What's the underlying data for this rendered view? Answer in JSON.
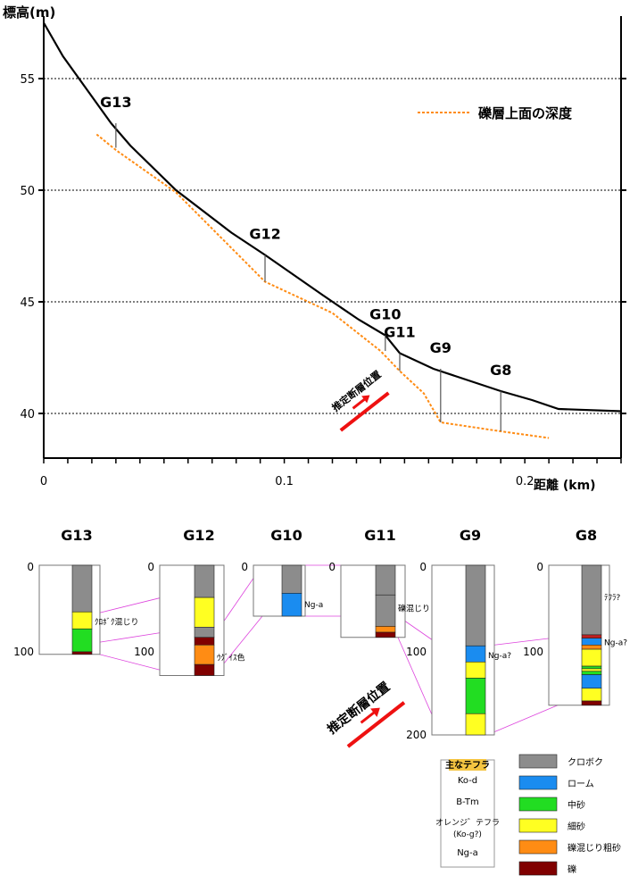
{
  "profile": {
    "ylabel": "標高(m)",
    "xlabel": "距離 (km)",
    "y_ticks": [
      {
        "value": 40,
        "label": "40"
      },
      {
        "value": 45,
        "label": "45"
      },
      {
        "value": 50,
        "label": "50"
      },
      {
        "value": 55,
        "label": "55"
      }
    ],
    "x_ticks": [
      {
        "value": 0,
        "label": "0"
      },
      {
        "value": 0.1,
        "label": "0.1"
      },
      {
        "value": 0.2,
        "label": "0.2"
      }
    ],
    "xlim": [
      0,
      0.24
    ],
    "ylim": [
      38,
      57.8
    ],
    "legend_label": "礫層上面の深度",
    "fault_label": "推定断層位置",
    "ground_surface": [
      [
        0,
        57.5
      ],
      [
        0.008,
        56
      ],
      [
        0.018,
        54.5
      ],
      [
        0.028,
        53
      ],
      [
        0.036,
        52
      ],
      [
        0.055,
        50
      ],
      [
        0.078,
        48.1
      ],
      [
        0.092,
        47.1
      ],
      [
        0.116,
        45.3
      ],
      [
        0.131,
        44.2
      ],
      [
        0.142,
        43.5
      ],
      [
        0.148,
        42.7
      ],
      [
        0.162,
        42.0
      ],
      [
        0.176,
        41.5
      ],
      [
        0.19,
        41.0
      ],
      [
        0.203,
        40.6
      ],
      [
        0.214,
        40.2
      ],
      [
        0.24,
        40.1
      ]
    ],
    "gravel_top": [
      [
        0.022,
        52.5
      ],
      [
        0.03,
        51.8
      ],
      [
        0.055,
        49.9
      ],
      [
        0.092,
        45.9
      ],
      [
        0.12,
        44.5
      ],
      [
        0.14,
        42.8
      ],
      [
        0.148,
        41.9
      ],
      [
        0.158,
        40.9
      ],
      [
        0.165,
        39.6
      ],
      [
        0.19,
        39.2
      ],
      [
        0.21,
        38.9
      ]
    ],
    "boreholes": [
      {
        "name": "G13",
        "x": 0.03,
        "top": 53.0,
        "bottom": 51.9
      },
      {
        "name": "G12",
        "x": 0.092,
        "top": 47.1,
        "bottom": 45.9
      },
      {
        "name": "G10",
        "x": 0.142,
        "top": 43.5,
        "bottom": 42.8
      },
      {
        "name": "G11",
        "x": 0.148,
        "top": 42.7,
        "bottom": 41.9
      },
      {
        "name": "G9",
        "x": 0.165,
        "top": 42.0,
        "bottom": 39.6
      },
      {
        "name": "G8",
        "x": 0.19,
        "top": 41.0,
        "bottom": 39.2
      }
    ]
  },
  "columns": {
    "logs": [
      {
        "name": "G13",
        "depth_label_top": "0",
        "depth_label_bottom": "100",
        "depth": 105,
        "layers": [
          {
            "material": "kuroboku",
            "from": 0,
            "to": 55
          },
          {
            "material": "fine_sand",
            "from": 55,
            "to": 75
          },
          {
            "material": "medium_sand",
            "from": 75,
            "to": 102
          },
          {
            "material": "gravel",
            "from": 102,
            "to": 105
          }
        ],
        "annotations": [
          {
            "text": "ｸﾛﾎﾞｸ混じり",
            "depth": 66
          }
        ]
      },
      {
        "name": "G12",
        "depth_label_top": "0",
        "depth_label_bottom": "100",
        "depth": 130,
        "layers": [
          {
            "material": "kuroboku",
            "from": 0,
            "to": 38
          },
          {
            "material": "fine_sand",
            "from": 38,
            "to": 73
          },
          {
            "material": "kuroboku",
            "from": 73,
            "to": 85
          },
          {
            "material": "gravel",
            "from": 85,
            "to": 94
          },
          {
            "material": "gravelly_coarse_sand",
            "from": 94,
            "to": 117
          },
          {
            "material": "gravel",
            "from": 117,
            "to": 130
          }
        ],
        "annotations": [
          {
            "text": "ｳｸﾞｲｽ色",
            "depth": 108
          }
        ]
      },
      {
        "name": "G10",
        "depth_label_top": "0",
        "depth_label_bottom": "",
        "depth": 60,
        "layers": [
          {
            "material": "kuroboku",
            "from": 0,
            "to": 33
          },
          {
            "material": "loam",
            "from": 33,
            "to": 60
          }
        ],
        "annotations": [
          {
            "text": "Ng-a",
            "depth": 45
          }
        ]
      },
      {
        "name": "G11",
        "depth_label_top": "0",
        "depth_label_bottom": "",
        "depth": 85,
        "layers": [
          {
            "material": "kuroboku",
            "from": 0,
            "to": 35
          },
          {
            "material": "kuroboku",
            "from": 35,
            "to": 72
          },
          {
            "material": "gravelly_coarse_sand",
            "from": 72,
            "to": 79
          },
          {
            "material": "gravel",
            "from": 79,
            "to": 85
          }
        ],
        "annotations": [
          {
            "text": "礫混じり",
            "depth": 50
          }
        ]
      },
      {
        "name": "G9",
        "depth_label_top": "0",
        "depth_label_bottom": "100",
        "depth_label_end": "200",
        "depth": 200,
        "layers": [
          {
            "material": "kuroboku",
            "from": 0,
            "to": 95
          },
          {
            "material": "loam",
            "from": 95,
            "to": 114
          },
          {
            "material": "fine_sand",
            "from": 114,
            "to": 133
          },
          {
            "material": "medium_sand",
            "from": 133,
            "to": 175
          },
          {
            "material": "fine_sand",
            "from": 175,
            "to": 200
          }
        ],
        "annotations": [
          {
            "text": "Ng-a?",
            "depth": 105
          }
        ]
      },
      {
        "name": "G8",
        "depth_label_top": "0",
        "depth_label_bottom": "100",
        "depth": 165,
        "layers": [
          {
            "material": "kuroboku",
            "from": 0,
            "to": 82
          },
          {
            "material": "tephra_red",
            "from": 82,
            "to": 86
          },
          {
            "material": "loam",
            "from": 86,
            "to": 94
          },
          {
            "material": "gravelly_coarse_sand",
            "from": 94,
            "to": 99
          },
          {
            "material": "fine_sand",
            "from": 99,
            "to": 119
          },
          {
            "material": "medium_sand",
            "from": 119,
            "to": 122
          },
          {
            "material": "fine_sand",
            "from": 122,
            "to": 125
          },
          {
            "material": "medium_sand",
            "from": 125,
            "to": 129
          },
          {
            "material": "loam",
            "from": 129,
            "to": 145
          },
          {
            "material": "fine_sand",
            "from": 145,
            "to": 160
          },
          {
            "material": "gravel",
            "from": 160,
            "to": 165
          }
        ],
        "annotations": [
          {
            "text": "ﾃﾌﾗ?",
            "depth": 37
          },
          {
            "text": "Ng-a?",
            "depth": 90
          }
        ]
      }
    ],
    "fault_label": "推定断層位置"
  },
  "materials": {
    "kuroboku": {
      "label": "クロボク",
      "color": "#8c8c8c"
    },
    "loam": {
      "label": "ローム",
      "color": "#1a8cf0"
    },
    "medium_sand": {
      "label": "中砂",
      "color": "#22dd22"
    },
    "fine_sand": {
      "label": "細砂",
      "color": "#ffff22"
    },
    "gravelly_coarse_sand": {
      "label": "礫混じり粗砂",
      "color": "#ff8c14"
    },
    "gravel": {
      "label": "礫",
      "color": "#800000"
    },
    "tephra_red": {
      "label": "",
      "color": "#c02020"
    }
  },
  "legend": {
    "material_order": [
      "kuroboku",
      "loam",
      "medium_sand",
      "fine_sand",
      "gravelly_coarse_sand",
      "gravel"
    ],
    "tephra_title": "主なテフラ",
    "tephras": [
      "Ko-d",
      "B-Tm",
      "オレンジ゛テフラ",
      "(Ko-g?)",
      "Ng-a"
    ]
  },
  "colors": {
    "ground_line": "#000000",
    "gravel_line": "#ff8c14",
    "fault_arrow": "#ee1111",
    "correlation_line": "#dd44dd",
    "tephra_title_bg": "#f5c542"
  }
}
